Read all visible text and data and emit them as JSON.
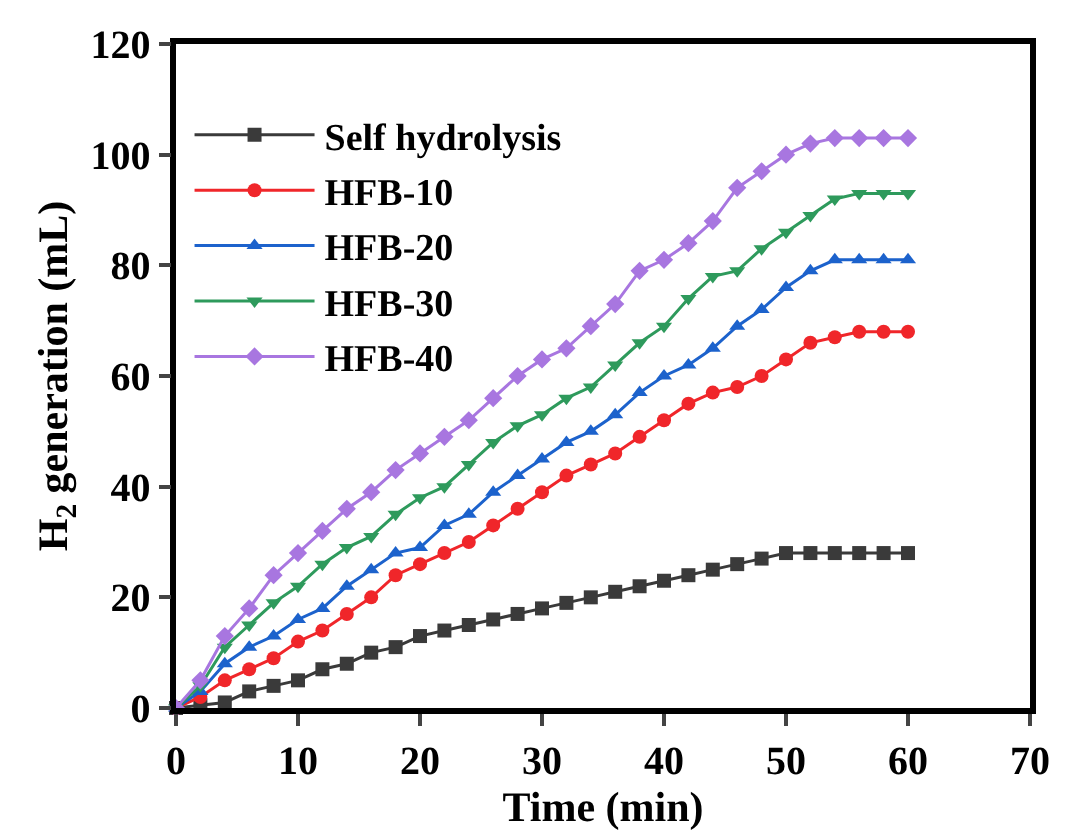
{
  "chart_data": {
    "type": "line",
    "xlabel": "Time (min)",
    "ylabel": "H$_{2}$ generation (mL)",
    "x": [
      0,
      2,
      4,
      6,
      8,
      10,
      12,
      14,
      16,
      18,
      20,
      22,
      24,
      26,
      28,
      30,
      32,
      34,
      36,
      38,
      40,
      42,
      44,
      46,
      48,
      50,
      52,
      54,
      56,
      58,
      60
    ],
    "series": [
      {
        "name": "Self hydrolysis",
        "color": "#3a3a3a",
        "marker": "square",
        "values": [
          0,
          0.5,
          1,
          3,
          4,
          5,
          7,
          8,
          10,
          11,
          13,
          14,
          15,
          16,
          17,
          18,
          19,
          20,
          21,
          22,
          23,
          24,
          25,
          26,
          27,
          28,
          28,
          28,
          28,
          28,
          28
        ]
      },
      {
        "name": "HFB-10",
        "color": "#f0262a",
        "marker": "circle",
        "values": [
          0,
          2,
          5,
          7,
          9,
          12,
          14,
          17,
          20,
          24,
          26,
          28,
          30,
          33,
          36,
          39,
          42,
          44,
          46,
          49,
          52,
          55,
          57,
          58,
          60,
          63,
          66,
          67,
          68,
          68,
          68
        ]
      },
      {
        "name": "HFB-20",
        "color": "#1c62cc",
        "marker": "triangle-up",
        "values": [
          0,
          3,
          8,
          11,
          13,
          16,
          18,
          22,
          25,
          28,
          29,
          33,
          35,
          39,
          42,
          45,
          48,
          50,
          53,
          57,
          60,
          62,
          65,
          69,
          72,
          76,
          79,
          81,
          81,
          81,
          81
        ]
      },
      {
        "name": "HFB-30",
        "color": "#2e9a5c",
        "marker": "triangle-down",
        "values": [
          0,
          4,
          11,
          15,
          19,
          22,
          26,
          29,
          31,
          35,
          38,
          40,
          44,
          48,
          51,
          53,
          56,
          58,
          62,
          66,
          69,
          74,
          78,
          79,
          83,
          86,
          89,
          92,
          93,
          93,
          93
        ]
      },
      {
        "name": "HFB-40",
        "color": "#a876e0",
        "marker": "diamond",
        "values": [
          0,
          5,
          13,
          18,
          24,
          28,
          32,
          36,
          39,
          43,
          46,
          49,
          52,
          56,
          60,
          63,
          65,
          69,
          73,
          79,
          81,
          84,
          88,
          94,
          97,
          100,
          102,
          103,
          103,
          103,
          103
        ]
      }
    ],
    "xlim": [
      0,
      70
    ],
    "xticks": [
      0,
      10,
      20,
      30,
      40,
      50,
      60,
      70
    ],
    "ylim": [
      0,
      120
    ],
    "yticks": [
      0,
      20,
      40,
      60,
      80,
      100,
      120
    ],
    "grid": false,
    "legend": "top left",
    "line_style": "solid"
  }
}
